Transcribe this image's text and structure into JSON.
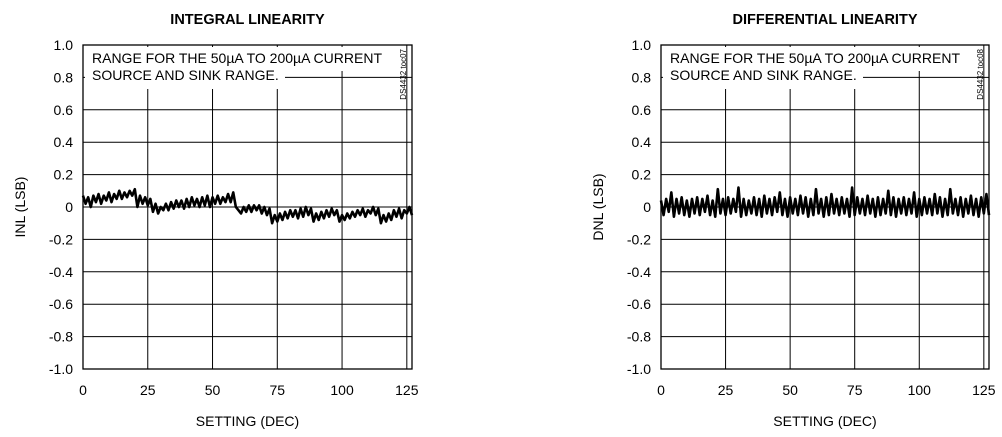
{
  "chart_data": [
    {
      "type": "line",
      "title": "INTEGRAL LINEARITY",
      "xlabel": "SETTING (DEC)",
      "ylabel": "INL (LSB)",
      "xlim": [
        0,
        127
      ],
      "ylim": [
        -1.0,
        1.0
      ],
      "x_ticks": [
        "0",
        "25",
        "50",
        "75",
        "100",
        "125"
      ],
      "y_ticks": [
        "1.0",
        "0.8",
        "0.6",
        "0.4",
        "0.2",
        "0",
        "-0.2",
        "-0.4",
        "-0.6",
        "-0.8",
        "-1.0"
      ],
      "grid": true,
      "annotation": [
        "RANGE FOR THE 50µA TO 200µA CURRENT",
        "SOURCE AND SINK RANGE."
      ],
      "figure_code": "DS4432 toc07",
      "series": [
        {
          "x": [
            0,
            1,
            2,
            3,
            4,
            5,
            6,
            7,
            8,
            9,
            10,
            11,
            12,
            13,
            14,
            15,
            16,
            17,
            18,
            19,
            20,
            21,
            22,
            23,
            24,
            25,
            26,
            27,
            28,
            29,
            30,
            31,
            32,
            33,
            34,
            35,
            36,
            37,
            38,
            39,
            40,
            41,
            42,
            43,
            44,
            45,
            46,
            47,
            48,
            49,
            50,
            51,
            52,
            53,
            54,
            55,
            56,
            57,
            58,
            59,
            60,
            61,
            62,
            63,
            64,
            65,
            66,
            67,
            68,
            69,
            70,
            71,
            72,
            73,
            74,
            75,
            76,
            77,
            78,
            79,
            80,
            81,
            82,
            83,
            84,
            85,
            86,
            87,
            88,
            89,
            90,
            91,
            92,
            93,
            94,
            95,
            96,
            97,
            98,
            99,
            100,
            101,
            102,
            103,
            104,
            105,
            106,
            107,
            108,
            109,
            110,
            111,
            112,
            113,
            114,
            115,
            116,
            117,
            118,
            119,
            120,
            121,
            122,
            123,
            124,
            125,
            126,
            127
          ],
          "values": [
            0.07,
            0.02,
            0.06,
            0.0,
            0.07,
            0.03,
            0.08,
            0.02,
            0.07,
            0.04,
            0.09,
            0.03,
            0.08,
            0.05,
            0.1,
            0.05,
            0.09,
            0.06,
            0.1,
            0.07,
            0.11,
            0.0,
            0.07,
            0.02,
            0.06,
            0.01,
            0.05,
            -0.03,
            0.02,
            -0.04,
            0.0,
            -0.02,
            0.02,
            -0.02,
            0.03,
            -0.01,
            0.04,
            0.0,
            0.04,
            -0.01,
            0.05,
            0.0,
            0.06,
            0.01,
            0.05,
            0.0,
            0.06,
            0.01,
            0.07,
            0.0,
            0.06,
            0.02,
            0.07,
            0.02,
            0.06,
            0.03,
            0.08,
            0.03,
            0.09,
            0.0,
            -0.02,
            -0.04,
            0.0,
            -0.03,
            0.01,
            -0.03,
            0.01,
            -0.02,
            0.01,
            -0.04,
            0.0,
            -0.05,
            -0.01,
            -0.1,
            -0.05,
            -0.09,
            -0.04,
            -0.08,
            -0.03,
            -0.07,
            -0.02,
            -0.06,
            -0.02,
            -0.07,
            -0.01,
            -0.06,
            0.0,
            -0.05,
            -0.01,
            -0.09,
            -0.04,
            -0.08,
            -0.03,
            -0.07,
            -0.02,
            -0.06,
            -0.01,
            -0.05,
            -0.02,
            -0.09,
            -0.05,
            -0.08,
            -0.04,
            -0.07,
            -0.03,
            -0.06,
            -0.02,
            -0.05,
            -0.01,
            -0.06,
            -0.02,
            -0.04,
            0.0,
            -0.05,
            -0.01,
            -0.1,
            -0.05,
            -0.09,
            -0.04,
            -0.08,
            -0.02,
            -0.06,
            -0.01,
            -0.07,
            -0.02,
            -0.04,
            0.0,
            -0.05
          ]
        }
      ]
    },
    {
      "type": "line",
      "title": "DIFFERENTIAL LINEARITY",
      "xlabel": "SETTING (DEC)",
      "ylabel": "DNL (LSB)",
      "xlim": [
        0,
        127
      ],
      "ylim": [
        -1.0,
        1.0
      ],
      "x_ticks": [
        "0",
        "25",
        "50",
        "75",
        "100",
        "125"
      ],
      "y_ticks": [
        "1.0",
        "0.8",
        "0.6",
        "0.4",
        "0.2",
        "0",
        "-0.2",
        "-0.4",
        "-0.6",
        "-0.8",
        "-1.0"
      ],
      "grid": true,
      "annotation": [
        "RANGE FOR THE 50µA TO 200µA CURRENT",
        "SOURCE AND SINK RANGE."
      ],
      "figure_code": "DS4432 toc08",
      "series": [
        {
          "x": [
            0,
            1,
            2,
            3,
            4,
            5,
            6,
            7,
            8,
            9,
            10,
            11,
            12,
            13,
            14,
            15,
            16,
            17,
            18,
            19,
            20,
            21,
            22,
            23,
            24,
            25,
            26,
            27,
            28,
            29,
            30,
            31,
            32,
            33,
            34,
            35,
            36,
            37,
            38,
            39,
            40,
            41,
            42,
            43,
            44,
            45,
            46,
            47,
            48,
            49,
            50,
            51,
            52,
            53,
            54,
            55,
            56,
            57,
            58,
            59,
            60,
            61,
            62,
            63,
            64,
            65,
            66,
            67,
            68,
            69,
            70,
            71,
            72,
            73,
            74,
            75,
            76,
            77,
            78,
            79,
            80,
            81,
            82,
            83,
            84,
            85,
            86,
            87,
            88,
            89,
            90,
            91,
            92,
            93,
            94,
            95,
            96,
            97,
            98,
            99,
            100,
            101,
            102,
            103,
            104,
            105,
            106,
            107,
            108,
            109,
            110,
            111,
            112,
            113,
            114,
            115,
            116,
            117,
            118,
            119,
            120,
            121,
            122,
            123,
            124,
            125,
            126,
            127
          ],
          "values": [
            0.04,
            -0.05,
            0.05,
            -0.03,
            0.09,
            -0.06,
            0.05,
            -0.04,
            0.06,
            -0.05,
            0.04,
            -0.06,
            0.05,
            -0.04,
            0.06,
            -0.05,
            0.05,
            -0.03,
            0.07,
            -0.05,
            0.04,
            -0.06,
            0.11,
            -0.04,
            0.05,
            -0.05,
            0.06,
            -0.04,
            0.05,
            -0.03,
            0.12,
            -0.06,
            0.05,
            -0.05,
            0.04,
            -0.04,
            0.06,
            -0.05,
            0.05,
            -0.06,
            0.07,
            -0.04,
            0.05,
            -0.05,
            0.06,
            -0.03,
            0.09,
            -0.05,
            0.05,
            -0.06,
            0.06,
            -0.04,
            0.05,
            -0.05,
            0.07,
            -0.04,
            0.06,
            -0.06,
            0.05,
            -0.05,
            0.11,
            -0.04,
            0.05,
            -0.06,
            0.06,
            -0.05,
            0.08,
            -0.04,
            0.05,
            -0.05,
            0.06,
            -0.04,
            0.05,
            -0.06,
            0.12,
            -0.05,
            0.06,
            -0.04,
            0.05,
            -0.05,
            0.07,
            -0.04,
            0.05,
            -0.06,
            0.06,
            -0.05,
            0.05,
            -0.04,
            0.1,
            -0.05,
            0.06,
            -0.06,
            0.05,
            -0.04,
            0.06,
            -0.05,
            0.05,
            -0.04,
            0.09,
            -0.06,
            0.05,
            -0.05,
            0.06,
            -0.04,
            0.05,
            -0.05,
            0.08,
            -0.04,
            0.06,
            -0.06,
            0.05,
            -0.05,
            0.11,
            -0.04,
            0.05,
            -0.05,
            0.06,
            -0.06,
            0.05,
            -0.04,
            0.07,
            -0.05,
            0.05,
            -0.06,
            0.06,
            -0.04,
            0.08,
            -0.05
          ]
        }
      ]
    }
  ]
}
